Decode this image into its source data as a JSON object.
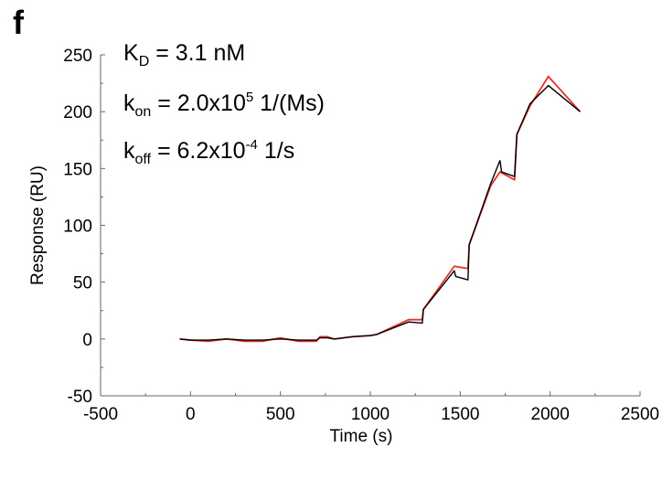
{
  "panel_label": "f",
  "annotations": {
    "kd": {
      "symbol": "K",
      "sub": "D",
      "text": " = 3.1 nM"
    },
    "kon": {
      "symbol": "k",
      "sub": "on",
      "text": " = 2.0x10",
      "sup": "5",
      "tail": " 1/(Ms)"
    },
    "koff": {
      "symbol": "k",
      "sub": "off",
      "text": " = 6.2x10",
      "sup": "-4",
      "tail": " 1/s"
    }
  },
  "chart_data": {
    "type": "line",
    "title": "",
    "xlabel": "Time (s)",
    "ylabel": "Response (RU)",
    "xlim": [
      -500,
      2500
    ],
    "ylim": [
      -50,
      250
    ],
    "xticks": [
      -500,
      0,
      500,
      1000,
      1500,
      2000,
      2500
    ],
    "yticks": [
      -50,
      0,
      50,
      100,
      150,
      200,
      250
    ],
    "grid": false,
    "series": [
      {
        "color": "#e8312a",
        "x": [
          -60,
          0,
          100,
          200,
          300,
          400,
          500,
          600,
          700,
          720,
          760,
          800,
          900,
          1000,
          1036,
          1213,
          1289,
          1295,
          1467,
          1543,
          1550,
          1670,
          1721,
          1802,
          1815,
          1888,
          1990,
          2167
        ],
        "y": [
          0,
          -1,
          -2,
          0,
          -2,
          -2,
          1,
          -2,
          -2,
          2,
          2,
          0,
          2,
          3,
          4,
          17,
          17,
          26,
          64,
          62,
          83,
          135,
          147,
          140,
          180,
          205,
          231,
          200
        ]
      },
      {
        "color": "#000000",
        "x": [
          -60,
          0,
          100,
          200,
          300,
          400,
          500,
          600,
          700,
          720,
          760,
          800,
          900,
          1000,
          1036,
          1213,
          1289,
          1295,
          1467,
          1475,
          1543,
          1550,
          1670,
          1721,
          1730,
          1802,
          1815,
          1888,
          1990,
          2167
        ],
        "y": [
          0,
          -1,
          -1,
          0,
          -1,
          -1,
          0,
          -1,
          -1,
          1,
          1,
          0,
          2,
          3,
          4,
          15,
          14,
          26,
          60,
          55,
          52,
          83,
          137,
          157,
          147,
          143,
          180,
          207,
          223,
          200
        ]
      }
    ]
  }
}
